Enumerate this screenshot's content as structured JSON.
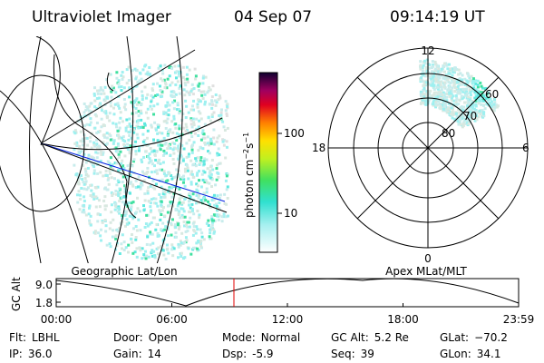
{
  "header": {
    "instrument": "Ultraviolet Imager",
    "date": "04 Sep 07",
    "time": "09:14:19 UT"
  },
  "colorbar": {
    "label": "photon cm",
    "exp1": "−2",
    "unit2": "s",
    "exp2": "−1",
    "ticks": [
      "100",
      "10"
    ]
  },
  "polar": {
    "mlt_labels": {
      "top": "12",
      "left": "18",
      "right": "6",
      "bottom": "0"
    },
    "lat_labels": [
      "80",
      "70",
      "60"
    ]
  },
  "panels": {
    "left": "Geographic Lat/Lon",
    "right": "Apex MLat/MLT"
  },
  "altitude_plot": {
    "ylabel": "GC Alt",
    "yticks": [
      "9.0",
      "1.8"
    ],
    "xticks": [
      "00:00",
      "06:00",
      "12:00",
      "18:00",
      "23:59"
    ]
  },
  "info": [
    [
      {
        "label": "Flt:",
        "value": "LBHL"
      },
      {
        "label": "Door:",
        "value": "Open"
      },
      {
        "label": "Mode:",
        "value": "Normal"
      },
      {
        "label": "GC Alt:",
        "value": "5.2 Re"
      },
      {
        "label": "GLat:",
        "value": "−70.2"
      }
    ],
    [
      {
        "label": "IP:",
        "value": "36.0"
      },
      {
        "label": "Gain:",
        "value": "14"
      },
      {
        "label": "Dsp:",
        "value": "-5.9"
      },
      {
        "label": "Seq:",
        "value": "39"
      },
      {
        "label": "GLon:",
        "value": "34.1"
      }
    ]
  ]
}
